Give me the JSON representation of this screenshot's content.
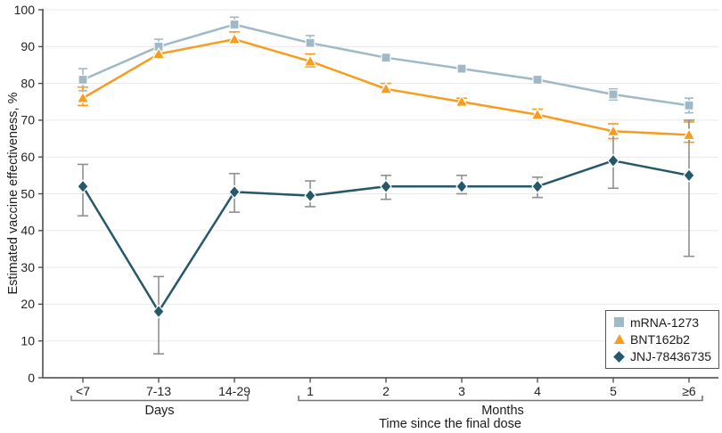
{
  "colors": {
    "axis": "#444444",
    "grid": "#E9E9E9",
    "tick_text": "#222222",
    "bracket": "#757575",
    "legend_border": "#555555",
    "background": "#FFFFFF"
  },
  "chart_data": {
    "type": "line",
    "title": "",
    "ylabel": "Estimated vaccine effectiveness, %",
    "xlabel": "Time since the final dose",
    "ylim": [
      0,
      100
    ],
    "yticks": [
      0,
      10,
      20,
      30,
      40,
      50,
      60,
      70,
      80,
      90,
      100
    ],
    "categories": [
      "<7",
      "7-13",
      "14-29",
      "1",
      "2",
      "3",
      "4",
      "5",
      "≥6"
    ],
    "x_groups": [
      {
        "label": "Days",
        "from_index": 0,
        "to_index": 2
      },
      {
        "label": "Months",
        "from_index": 3,
        "to_index": 8
      }
    ],
    "grid": true,
    "legend_position": "bottom-right",
    "series": [
      {
        "name": "mRNA-1273",
        "marker": "square",
        "color": "#9FB9C6",
        "error_color": "#9FB9C6",
        "values": [
          81,
          90,
          96,
          91,
          87,
          84,
          81,
          77,
          74
        ],
        "ci_low": [
          78,
          88,
          95,
          90,
          86,
          83,
          80,
          75.5,
          72
        ],
        "ci_high": [
          84,
          92,
          98,
          93,
          88,
          85,
          82,
          78.5,
          76
        ]
      },
      {
        "name": "BNT162b2",
        "marker": "triangle",
        "color": "#F89C1D",
        "error_color": "#F89C1D",
        "values": [
          76,
          88,
          92,
          86,
          78.5,
          75,
          71.5,
          67,
          66
        ],
        "ci_low": [
          74,
          87,
          91,
          84.5,
          77.5,
          74,
          70.5,
          65,
          64
        ],
        "ci_high": [
          79,
          90,
          94,
          88,
          80,
          76,
          73,
          69,
          69.5
        ]
      },
      {
        "name": "JNJ-78436735",
        "marker": "diamond",
        "color": "#26586B",
        "error_color": "#8F8F8F",
        "values": [
          52,
          18,
          50.5,
          49.5,
          52,
          52,
          52,
          59,
          55
        ],
        "ci_low": [
          44,
          6.5,
          45,
          46.5,
          48.5,
          50,
          49,
          51.5,
          33
        ],
        "ci_high": [
          58,
          27.5,
          55.5,
          53.5,
          55,
          55,
          54.5,
          67,
          70
        ]
      }
    ]
  }
}
